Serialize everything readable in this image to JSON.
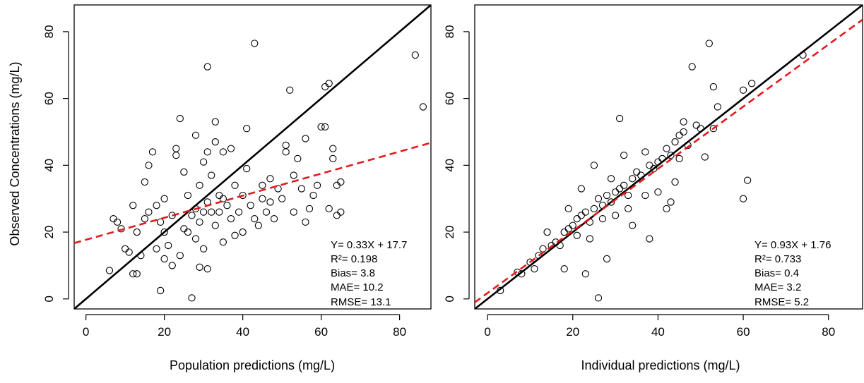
{
  "figure": {
    "ylabel": "Observed Concentrations (mg/L)"
  },
  "colors": {
    "identity_line": "#000000",
    "regression_line": "#e41a1c",
    "points": "#000000"
  },
  "chart_data": [
    {
      "type": "scatter",
      "xlabel": "Population predictions (mg/L)",
      "ylabel": "Observed Concentrations (mg/L)",
      "xlim": [
        -3,
        88
      ],
      "ylim": [
        -3,
        88
      ],
      "xticks": [
        "0",
        "20",
        "40",
        "60",
        "80"
      ],
      "yticks": [
        "0",
        "20",
        "40",
        "60",
        "80"
      ],
      "identity_line": "y = x",
      "regression_line": {
        "slope": 0.33,
        "intercept": 17.7,
        "style": "dashed"
      },
      "stats": [
        "Y= 0.33X + 17.7",
        "R²= 0.198",
        "Bias= 3.8",
        "MAE= 10.2",
        "RMSE= 13.1"
      ],
      "points": [
        [
          6,
          8.5
        ],
        [
          7,
          24
        ],
        [
          8,
          23
        ],
        [
          9,
          21
        ],
        [
          10,
          15
        ],
        [
          11,
          14
        ],
        [
          12,
          28
        ],
        [
          12,
          7.5
        ],
        [
          13,
          7.5
        ],
        [
          13,
          20
        ],
        [
          14,
          13
        ],
        [
          15,
          35
        ],
        [
          15,
          24
        ],
        [
          16,
          26
        ],
        [
          16,
          40
        ],
        [
          17,
          44
        ],
        [
          18,
          28
        ],
        [
          18,
          15
        ],
        [
          19,
          23
        ],
        [
          19,
          2.5
        ],
        [
          20,
          12
        ],
        [
          20,
          30
        ],
        [
          20,
          20
        ],
        [
          21,
          16
        ],
        [
          22,
          25
        ],
        [
          22,
          10
        ],
        [
          23,
          45
        ],
        [
          23,
          43
        ],
        [
          24,
          13
        ],
        [
          24,
          54
        ],
        [
          25,
          38
        ],
        [
          25,
          21
        ],
        [
          26,
          31
        ],
        [
          26,
          20
        ],
        [
          27,
          0.3
        ],
        [
          27,
          25
        ],
        [
          28,
          27
        ],
        [
          28,
          49
        ],
        [
          28,
          18
        ],
        [
          29,
          23
        ],
        [
          29,
          9.5
        ],
        [
          29,
          34
        ],
        [
          30,
          26
        ],
        [
          30,
          41
        ],
        [
          30,
          15
        ],
        [
          31,
          69.5
        ],
        [
          31,
          29
        ],
        [
          31,
          44
        ],
        [
          31,
          9
        ],
        [
          32,
          26
        ],
        [
          32,
          37
        ],
        [
          33,
          22
        ],
        [
          33,
          53
        ],
        [
          33,
          47
        ],
        [
          34,
          31
        ],
        [
          34,
          26
        ],
        [
          35,
          30
        ],
        [
          35,
          44
        ],
        [
          35,
          17
        ],
        [
          36,
          28
        ],
        [
          37,
          24
        ],
        [
          37,
          45
        ],
        [
          38,
          34
        ],
        [
          38,
          19
        ],
        [
          39,
          26
        ],
        [
          40,
          31
        ],
        [
          40,
          20
        ],
        [
          41,
          51
        ],
        [
          41,
          39
        ],
        [
          42,
          28
        ],
        [
          43,
          76.5
        ],
        [
          43,
          24
        ],
        [
          44,
          22
        ],
        [
          45,
          30
        ],
        [
          45,
          34
        ],
        [
          46,
          26
        ],
        [
          47,
          36
        ],
        [
          47,
          29
        ],
        [
          48,
          24
        ],
        [
          49,
          33
        ],
        [
          50,
          30
        ],
        [
          51,
          44
        ],
        [
          51,
          46
        ],
        [
          52,
          62.5
        ],
        [
          53,
          26
        ],
        [
          53,
          37
        ],
        [
          54,
          42
        ],
        [
          55,
          33
        ],
        [
          56,
          23
        ],
        [
          56,
          48
        ],
        [
          57,
          27
        ],
        [
          58,
          31
        ],
        [
          59,
          34
        ],
        [
          60,
          51.5
        ],
        [
          61,
          51.5
        ],
        [
          61,
          63.5
        ],
        [
          62,
          64.5
        ],
        [
          62,
          27
        ],
        [
          63,
          42
        ],
        [
          63,
          45
        ],
        [
          64,
          34
        ],
        [
          64,
          25
        ],
        [
          65,
          35
        ],
        [
          65,
          26
        ],
        [
          84,
          73
        ],
        [
          86,
          57.5
        ]
      ]
    },
    {
      "type": "scatter",
      "xlabel": "Individual predictions (mg/L)",
      "ylabel": "",
      "xlim": [
        -3,
        88
      ],
      "ylim": [
        -3,
        88
      ],
      "xticks": [
        "0",
        "20",
        "40",
        "60",
        "80"
      ],
      "yticks": [
        "0",
        "20",
        "40",
        "60",
        "80"
      ],
      "identity_line": "y = x",
      "regression_line": {
        "slope": 0.93,
        "intercept": 1.76,
        "style": "dashed"
      },
      "stats": [
        "Y= 0.93X + 1.76",
        "R²= 0.733",
        "Bias= 0.4",
        "MAE= 3.2",
        "RMSE= 5.2"
      ],
      "points": [
        [
          3,
          2.5
        ],
        [
          7,
          8
        ],
        [
          8,
          7.5
        ],
        [
          10,
          11
        ],
        [
          11,
          9
        ],
        [
          12,
          13
        ],
        [
          13,
          15
        ],
        [
          14,
          20
        ],
        [
          15,
          16
        ],
        [
          16,
          17
        ],
        [
          17,
          16
        ],
        [
          18,
          9
        ],
        [
          18,
          20
        ],
        [
          19,
          21
        ],
        [
          19,
          27
        ],
        [
          20,
          22
        ],
        [
          21,
          24
        ],
        [
          21,
          19
        ],
        [
          22,
          25
        ],
        [
          22,
          33
        ],
        [
          23,
          26
        ],
        [
          23,
          7.5
        ],
        [
          24,
          23
        ],
        [
          24,
          18
        ],
        [
          25,
          27
        ],
        [
          25,
          40
        ],
        [
          26,
          30
        ],
        [
          26,
          0.3
        ],
        [
          27,
          28
        ],
        [
          27,
          24
        ],
        [
          28,
          31
        ],
        [
          28,
          12
        ],
        [
          29,
          29
        ],
        [
          29,
          36
        ],
        [
          30,
          32
        ],
        [
          30,
          25
        ],
        [
          31,
          33
        ],
        [
          31,
          54
        ],
        [
          32,
          34
        ],
        [
          32,
          43
        ],
        [
          33,
          31
        ],
        [
          33,
          27
        ],
        [
          34,
          36
        ],
        [
          34,
          22
        ],
        [
          35,
          38
        ],
        [
          36,
          37
        ],
        [
          37,
          44
        ],
        [
          37,
          31
        ],
        [
          38,
          40
        ],
        [
          38,
          18
        ],
        [
          39,
          39
        ],
        [
          40,
          41
        ],
        [
          40,
          32
        ],
        [
          41,
          42
        ],
        [
          42,
          45
        ],
        [
          42,
          27
        ],
        [
          43,
          43
        ],
        [
          43,
          29
        ],
        [
          44,
          47
        ],
        [
          44,
          35
        ],
        [
          45,
          49
        ],
        [
          45,
          42
        ],
        [
          46,
          53
        ],
        [
          46,
          50
        ],
        [
          47,
          46
        ],
        [
          48,
          69.5
        ],
        [
          49,
          52
        ],
        [
          50,
          51
        ],
        [
          51,
          42.5
        ],
        [
          52,
          76.5
        ],
        [
          53,
          63.5
        ],
        [
          53,
          51
        ],
        [
          54,
          57.5
        ],
        [
          60,
          62.5
        ],
        [
          60,
          30
        ],
        [
          61,
          35.5
        ],
        [
          62,
          64.5
        ],
        [
          74,
          73
        ]
      ]
    }
  ]
}
